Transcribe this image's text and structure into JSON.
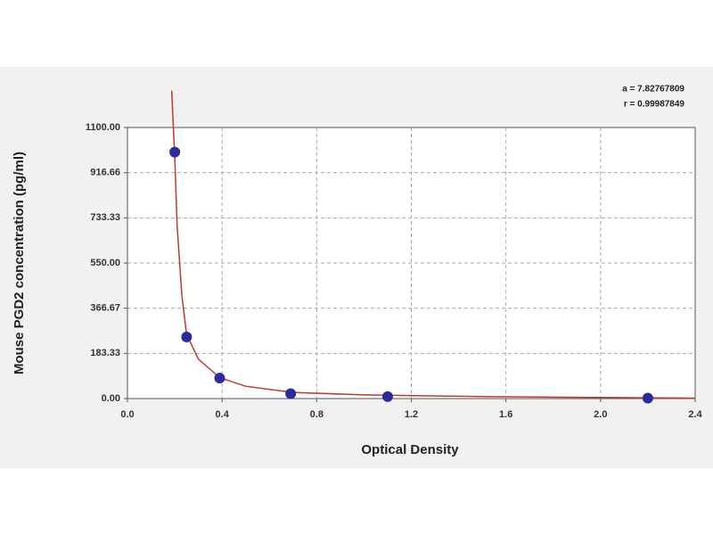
{
  "chart_data": {
    "type": "scatter",
    "x_label": "Optical Density",
    "y_label": "Mouse PGD2 concentration (pg/ml)",
    "annotations": [
      "a = 7.82767809",
      "r = 0.99987849"
    ],
    "xlim": [
      0,
      2.4
    ],
    "ylim": [
      0,
      1100
    ],
    "xticks": [
      {
        "value": 0,
        "label": "0.0"
      },
      0.4,
      0.8,
      1.2,
      1.6,
      {
        "value": 2,
        "label": "2.0"
      },
      2.4
    ],
    "yticks": [
      {
        "value": 0,
        "label": "0.00"
      },
      183.33,
      366.67,
      {
        "value": 550,
        "label": "550.00"
      },
      733.33,
      916.66,
      {
        "value": 1100,
        "label": "1100.00"
      }
    ],
    "grid": true,
    "series": [
      {
        "type": "line",
        "color": "#c0392b",
        "x": [
          0.187,
          0.2,
          0.21,
          0.23,
          0.25,
          0.3,
          0.39,
          0.5,
          0.7,
          1.0,
          1.5,
          2.2,
          2.4
        ],
        "values": [
          1250,
          980,
          700,
          420,
          260,
          160,
          85,
          50,
          25,
          15,
          8,
          3,
          2
        ]
      },
      {
        "type": "scatter",
        "color": "#2b2b9c",
        "x": [
          0.2,
          0.25,
          0.39,
          0.69,
          1.1,
          2.2
        ],
        "values": [
          1000,
          250,
          83,
          20,
          8,
          2
        ]
      }
    ]
  }
}
